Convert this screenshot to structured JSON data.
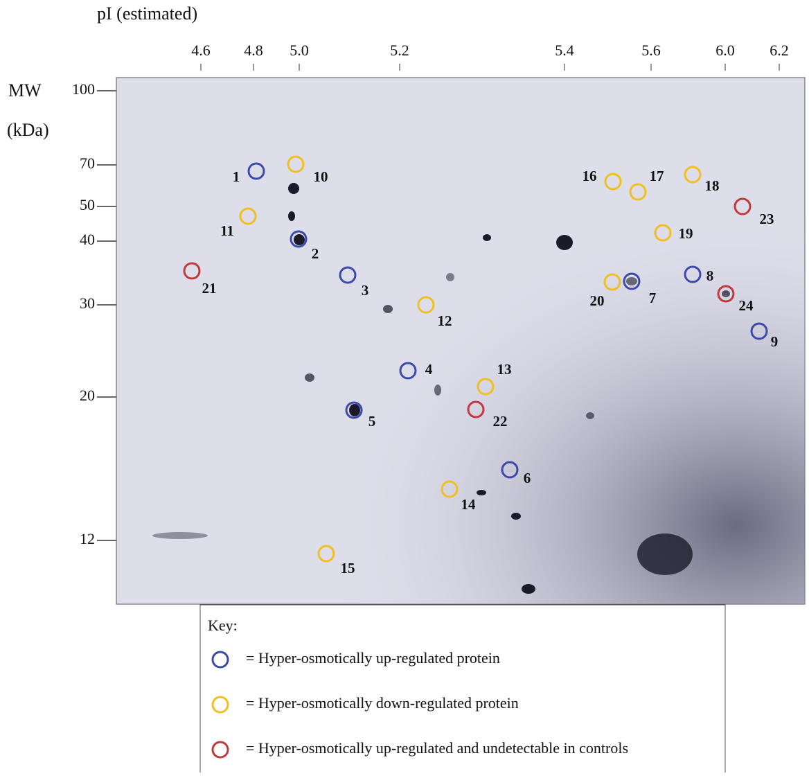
{
  "x_axis": {
    "title": "pI (estimated)",
    "ticks": [
      "4.6",
      "4.8",
      "5.0",
      "5.2",
      "5.4",
      "5.6",
      "6.0",
      "6.2"
    ]
  },
  "y_axis": {
    "title": [
      "MW",
      "(kDa)"
    ],
    "ticks": [
      "100",
      "70",
      "50",
      "40",
      "30",
      "20",
      "12"
    ]
  },
  "spots": [
    {
      "label": "1",
      "color": "#3b4aa8"
    },
    {
      "label": "2",
      "color": "#3b4aa8"
    },
    {
      "label": "3",
      "color": "#3b4aa8"
    },
    {
      "label": "4",
      "color": "#3b4aa8"
    },
    {
      "label": "5",
      "color": "#3b4aa8"
    },
    {
      "label": "6",
      "color": "#3b4aa8"
    },
    {
      "label": "7",
      "color": "#3b4aa8"
    },
    {
      "label": "8",
      "color": "#3b4aa8"
    },
    {
      "label": "9",
      "color": "#3b4aa8"
    },
    {
      "label": "10",
      "color": "#f0c020"
    },
    {
      "label": "11",
      "color": "#f0c020"
    },
    {
      "label": "12",
      "color": "#f0c020"
    },
    {
      "label": "13",
      "color": "#f0c020"
    },
    {
      "label": "14",
      "color": "#f0c020"
    },
    {
      "label": "15",
      "color": "#f0c020"
    },
    {
      "label": "16",
      "color": "#f0c020"
    },
    {
      "label": "17",
      "color": "#f0c020"
    },
    {
      "label": "18",
      "color": "#f0c020"
    },
    {
      "label": "19",
      "color": "#f0c020"
    },
    {
      "label": "20",
      "color": "#f0c020"
    },
    {
      "label": "21",
      "color": "#c0393b"
    },
    {
      "label": "22",
      "color": "#c0393b"
    },
    {
      "label": "23",
      "color": "#c0393b"
    },
    {
      "label": "24",
      "color": "#c0393b"
    }
  ],
  "key": {
    "title": "Key:",
    "items": [
      {
        "text": "= Hyper-osmotically up-regulated protein",
        "color": "#3b4aa8"
      },
      {
        "text": "= Hyper-osmotically down-regulated protein",
        "color": "#f0c020"
      },
      {
        "text": "= Hyper-osmotically up-regulated and undetectable in controls",
        "color": "#c0393b"
      }
    ]
  }
}
